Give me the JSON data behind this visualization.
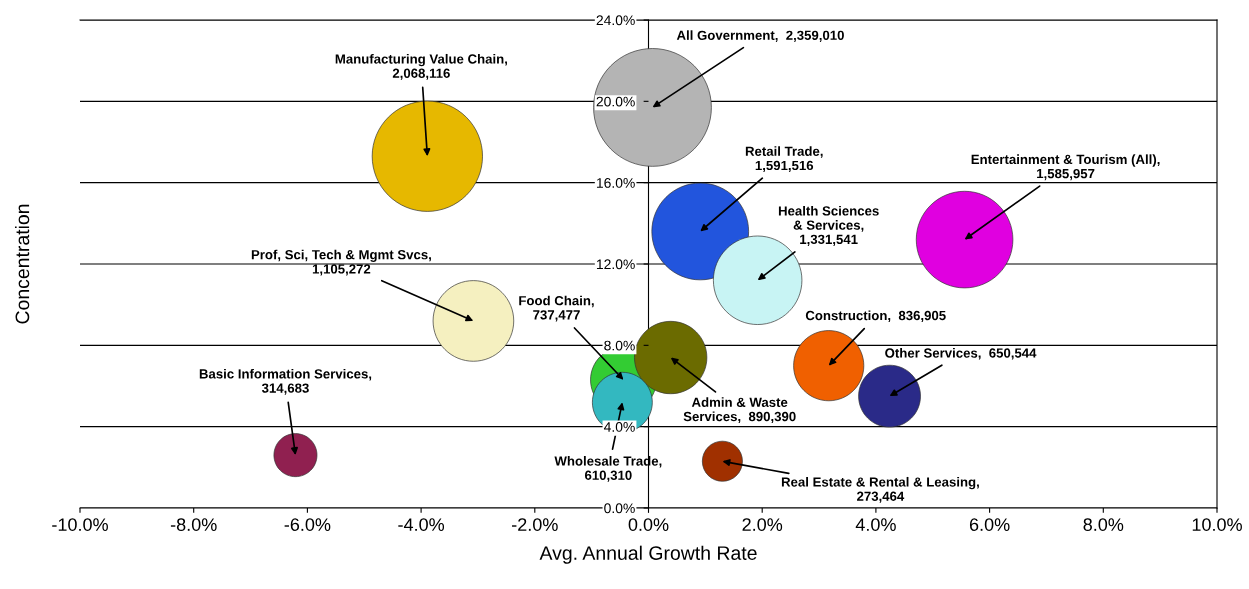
{
  "chart_data": {
    "type": "bubble",
    "xlabel": "Avg. Annual Growth Rate",
    "ylabel": "Concentration",
    "xlim": [
      -10,
      10
    ],
    "ylim": [
      0,
      24
    ],
    "xticks": [
      {
        "value": -10,
        "label": "-10.0%"
      },
      {
        "value": -8,
        "label": "-8.0%"
      },
      {
        "value": -6,
        "label": "-6.0%"
      },
      {
        "value": -4,
        "label": "-4.0%"
      },
      {
        "value": -2,
        "label": "-2.0%"
      },
      {
        "value": 0,
        "label": "0.0%"
      },
      {
        "value": 2,
        "label": "2.0%"
      },
      {
        "value": 4,
        "label": "4.0%"
      },
      {
        "value": 6,
        "label": "6.0%"
      },
      {
        "value": 8,
        "label": "8.0%"
      },
      {
        "value": 10,
        "label": "10.0%"
      }
    ],
    "yticks": [
      {
        "value": 0,
        "label": "0.0%"
      },
      {
        "value": 4,
        "label": "4.0%"
      },
      {
        "value": 8,
        "label": "8.0%"
      },
      {
        "value": 12,
        "label": "12.0%"
      },
      {
        "value": 16,
        "label": "16.0%"
      },
      {
        "value": 20,
        "label": "20.0%"
      },
      {
        "value": 24,
        "label": "24.0%"
      }
    ],
    "grid": "y",
    "legend": false,
    "series": [
      {
        "x": [
          -3.89,
          0.07,
          0.91,
          5.56,
          1.92,
          -3.08,
          -0.44,
          0.39,
          -0.46,
          3.17,
          4.24,
          1.3,
          -6.21
        ],
        "values": [
          17.3,
          19.7,
          13.6,
          13.2,
          11.2,
          9.2,
          6.3,
          7.4,
          5.2,
          7.0,
          5.5,
          2.3,
          2.6
        ],
        "sizes": [
          0.8767,
          1,
          0.6747,
          0.6723,
          0.5645,
          0.4685,
          0.3126,
          0.3774,
          0.2587,
          0.3548,
          0.2758,
          0.1159,
          0.1334
        ],
        "colors": [
          "#e6b800",
          "#b4b4b4",
          "#2255dd",
          "#e000e0",
          "#c8f4f4",
          "#f5f0c0",
          "#33cc33",
          "#6b6b00",
          "#33b8c0",
          "#f06000",
          "#2a2a88",
          "#a03000",
          "#902050"
        ]
      }
    ],
    "annotations": [
      {
        "text": "Manufacturing Value Chain,\n2,068,116",
        "x": -3.89,
        "y": 17.3
      },
      {
        "text": "All Government,  2,359,010",
        "x": 0.07,
        "y": 19.7
      },
      {
        "text": "Retail Trade,\n1,591,516",
        "x": 0.91,
        "y": 13.6
      },
      {
        "text": "Entertainment & Tourism (All),\n1,585,957",
        "x": 5.56,
        "y": 13.2
      },
      {
        "text": "Health Sciences\n& Services,\n1,331,541",
        "x": 1.92,
        "y": 11.2
      },
      {
        "text": "Prof, Sci, Tech & Mgmt Svcs,\n1,105,272",
        "x": -3.08,
        "y": 9.2
      },
      {
        "text": "Food Chain,\n737,477",
        "x": -0.44,
        "y": 6.3
      },
      {
        "text": "Admin & Waste\nServices,  890,390",
        "x": 0.39,
        "y": 7.4
      },
      {
        "text": "Wholesale Trade,\n610,310",
        "x": -0.46,
        "y": 5.2
      },
      {
        "text": "Construction,  836,905",
        "x": 3.17,
        "y": 7.0
      },
      {
        "text": "Other Services,  650,544",
        "x": 4.24,
        "y": 5.5
      },
      {
        "text": "Real Estate & Rental & Leasing,\n273,464",
        "x": 1.3,
        "y": 2.3
      },
      {
        "text": "Basic Information Services,\n314,683",
        "x": -6.21,
        "y": 2.6
      }
    ]
  }
}
